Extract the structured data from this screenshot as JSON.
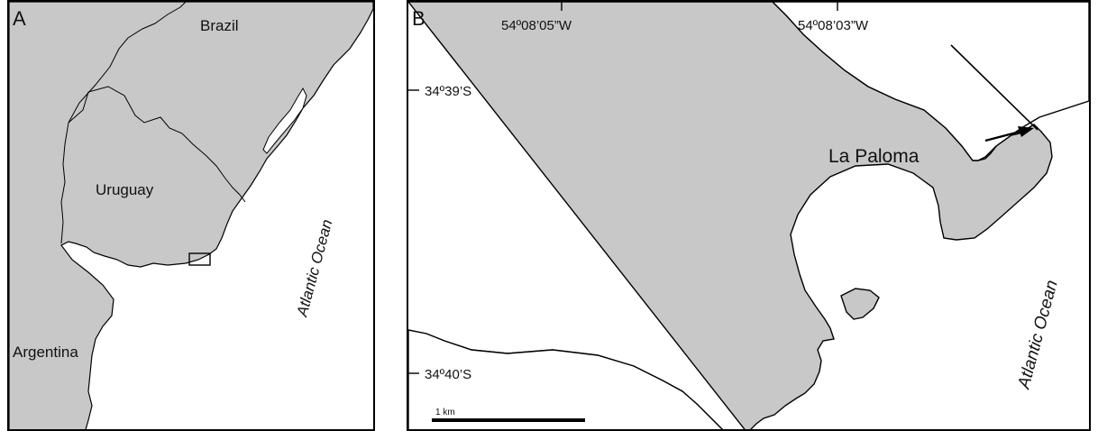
{
  "panel_a": {
    "letter": "A",
    "labels": {
      "brazil": "Brazil",
      "uruguay": "Uruguay",
      "argentina": "Argentina",
      "ocean": "Atlantic Ocean"
    },
    "colors": {
      "land": "#c8c8c8",
      "water": "#ffffff",
      "outline": "#000000"
    }
  },
  "panel_b": {
    "letter": "B",
    "place": "La Paloma",
    "ocean": "Atlantic Ocean",
    "lon_ticks": [
      "54º08’05”W",
      "54º08’03”W"
    ],
    "lat_ticks": [
      "34º39’S",
      "34º40’S"
    ],
    "scale_bar_label": "1 km",
    "colors": {
      "land": "#c8c8c8",
      "water": "#ffffff",
      "outline": "#000000"
    }
  }
}
